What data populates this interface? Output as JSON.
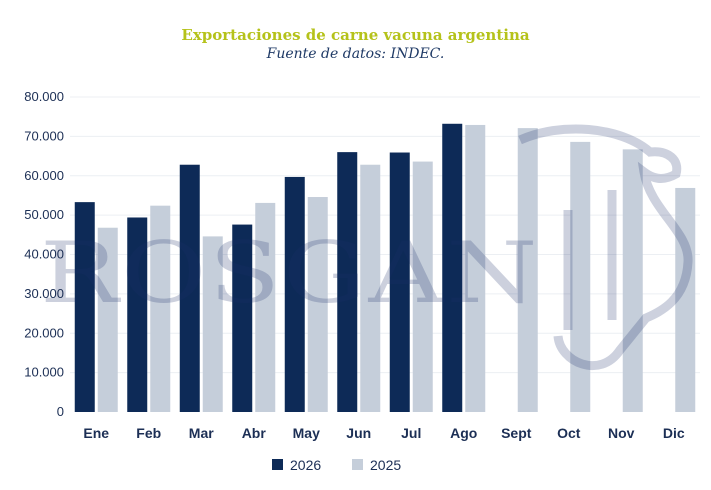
{
  "chart_data": {
    "type": "bar",
    "title": "Exportaciones de carne vacuna argentina",
    "subtitle": "Fuente de datos: INDEC.",
    "categories": [
      "Ene",
      "Feb",
      "Mar",
      "Abr",
      "May",
      "Jun",
      "Jul",
      "Ago",
      "Sept",
      "Oct",
      "Nov",
      "Dic"
    ],
    "series": [
      {
        "name": "2026",
        "color": "#0d2a57",
        "values": [
          53300,
          49400,
          62800,
          47600,
          59700,
          66000,
          65900,
          73200,
          null,
          null,
          null,
          null
        ]
      },
      {
        "name": "2025",
        "color": "#c5ceda",
        "values": [
          46800,
          52400,
          44600,
          53100,
          54600,
          62800,
          63600,
          72900,
          72100,
          68600,
          66700,
          56900
        ]
      }
    ],
    "yticks": [
      "0",
      "10.000",
      "20.000",
      "30.000",
      "40.000",
      "50.000",
      "60.000",
      "70.000",
      "80.000"
    ],
    "ylim": [
      0,
      80000
    ],
    "grid": true,
    "legend_position": "bottom-center",
    "xlabel": "",
    "ylabel": ""
  },
  "watermark": {
    "text": "ROSGAN",
    "icon": "cow-head-icon"
  }
}
